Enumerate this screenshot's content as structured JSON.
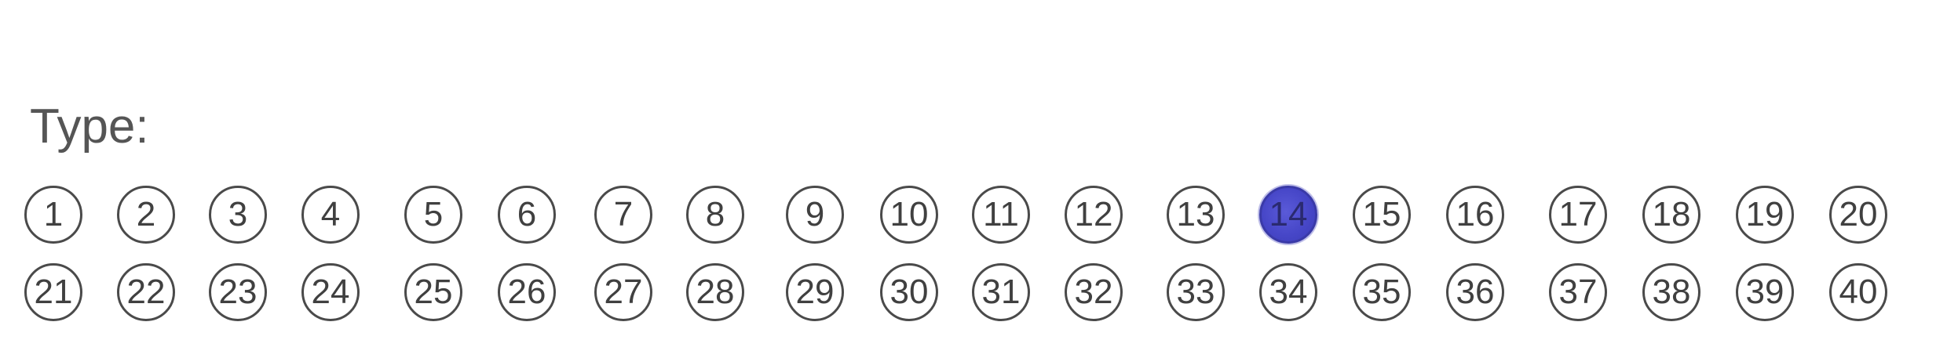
{
  "type_label": "Type:",
  "selected": [
    "14"
  ],
  "filled_color": "#4a4acc",
  "rows": [
    [
      "1",
      "2",
      "3",
      "4",
      "5",
      "6",
      "7",
      "8",
      "9",
      "10",
      "11",
      "12",
      "13",
      "14",
      "15",
      "16",
      "17",
      "18",
      "19",
      "20"
    ],
    [
      "21",
      "22",
      "23",
      "24",
      "25",
      "26",
      "27",
      "28",
      "29",
      "30",
      "31",
      "32",
      "33",
      "34",
      "35",
      "36",
      "37",
      "38",
      "39",
      "40"
    ]
  ]
}
